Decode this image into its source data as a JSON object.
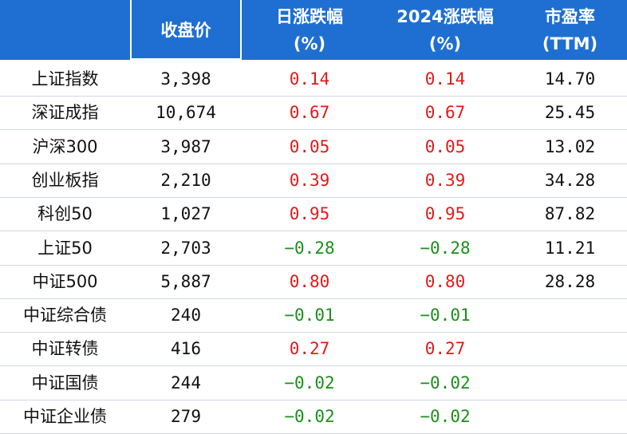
{
  "header": {
    "columns": [
      {
        "line1": "",
        "line2": ""
      },
      {
        "line1": "收盘价",
        "line2": ""
      },
      {
        "line1": "日涨跌幅",
        "line2": "(%)"
      },
      {
        "line1": "2024涨跌幅",
        "line2": "(%)"
      },
      {
        "line1": "市盈率",
        "line2": "(TTM)"
      }
    ]
  },
  "colors": {
    "header_bg": "#1f6fd2",
    "up": "#e01a1a",
    "down": "#1a8f1a"
  },
  "rows": [
    {
      "name": "上证指数",
      "close": "3,398",
      "daily": "0.14",
      "ytd": "0.14",
      "pe": "14.70",
      "dir": "up"
    },
    {
      "name": "深证成指",
      "close": "10,674",
      "daily": "0.67",
      "ytd": "0.67",
      "pe": "25.45",
      "dir": "up"
    },
    {
      "name": "沪深300",
      "close": "3,987",
      "daily": "0.05",
      "ytd": "0.05",
      "pe": "13.02",
      "dir": "up"
    },
    {
      "name": "创业板指",
      "close": "2,210",
      "daily": "0.39",
      "ytd": "0.39",
      "pe": "34.28",
      "dir": "up"
    },
    {
      "name": "科创50",
      "close": "1,027",
      "daily": "0.95",
      "ytd": "0.95",
      "pe": "87.82",
      "dir": "up"
    },
    {
      "name": "上证50",
      "close": "2,703",
      "daily": "−0.28",
      "ytd": "−0.28",
      "pe": "11.21",
      "dir": "down"
    },
    {
      "name": "中证500",
      "close": "5,887",
      "daily": "0.80",
      "ytd": "0.80",
      "pe": "28.28",
      "dir": "up"
    },
    {
      "name": "中证综合债",
      "close": "240",
      "daily": "−0.01",
      "ytd": "−0.01",
      "pe": "",
      "dir": "down"
    },
    {
      "name": "中证转债",
      "close": "416",
      "daily": "0.27",
      "ytd": "0.27",
      "pe": "",
      "dir": "up"
    },
    {
      "name": "中证国债",
      "close": "244",
      "daily": "−0.02",
      "ytd": "−0.02",
      "pe": "",
      "dir": "down"
    },
    {
      "name": "中证企业债",
      "close": "279",
      "daily": "−0.02",
      "ytd": "−0.02",
      "pe": "",
      "dir": "down"
    }
  ]
}
